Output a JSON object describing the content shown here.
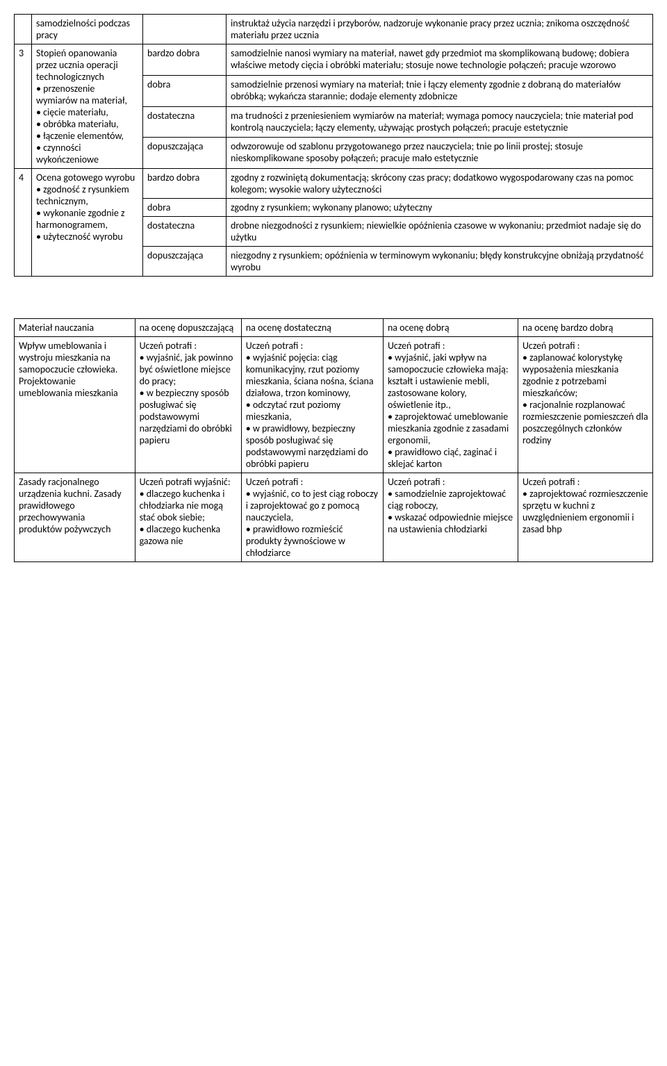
{
  "table1": {
    "r0": {
      "desc": "samodzielności podczas pracy",
      "text": "instruktaż użycia narzędzi i przyborów, nadzoruje wykonanie pracy przez ucznia; znikoma oszczędność materiału przez ucznia"
    },
    "r3": {
      "num": "3",
      "desc": "Stopień opanowania przez ucznia operacji technologicznych\n• przenoszenie wymiarów na materiał,\n• cięcie materiału,\n• obróbka materiału,\n• łączenie elementów,\n• czynności wykończeniowe",
      "g1": "bardzo dobra",
      "t1": "samodzielnie nanosi wymiary na materiał, nawet gdy przedmiot ma skomplikowaną budowę; dobiera właściwe metody cięcia i obróbki materiału; stosuje nowe technologie połączeń; pracuje wzorowo",
      "g2": "dobra",
      "t2": "samodzielnie przenosi wymiary na materiał; tnie i łączy elementy zgodnie z dobraną do materiałów obróbką; wykańcza starannie; dodaje elementy zdobnicze",
      "g3": "dostateczna",
      "t3": "ma trudności z przeniesieniem wymiarów na materiał; wymaga pomocy nauczyciela; tnie materiał pod kontrolą nauczyciela; łączy elementy, używając prostych połączeń; pracuje estetycznie",
      "g4": "dopuszczająca",
      "t4": "odwzorowuje od szablonu przygotowanego przez nauczyciela; tnie po linii prostej; stosuje nieskomplikowane sposoby połączeń; pracuje mało estetycznie"
    },
    "r4": {
      "num": "4",
      "desc": "Ocena gotowego wyrobu\n• zgodność z rysunkiem technicznym,\n• wykonanie zgodnie z harmonogramem,\n• użyteczność wyrobu",
      "g1": "bardzo dobra",
      "t1": "zgodny z rozwiniętą dokumentacją; skrócony czas pracy; dodatkowo wygospodarowany czas na pomoc kolegom; wysokie walory użyteczności",
      "g2": "dobra",
      "t2": "zgodny z rysunkiem; wykonany planowo; użyteczny",
      "g3": "dostateczna",
      "t3": "drobne niezgodności z rysunkiem; niewielkie opóźnienia czasowe w wykonaniu; przedmiot nadaje się do użytku",
      "g4": "dopuszczająca",
      "t4": "niezgodny z rysunkiem; opóźnienia w terminowym wykonaniu; błędy konstrukcyjne obniżają przydatność wyrobu"
    }
  },
  "table2": {
    "header": {
      "c1": "Materiał nauczania",
      "c2": "na ocenę dopuszczającą",
      "c3": "na ocenę dostateczną",
      "c4": "na ocenę dobrą",
      "c5": "na ocenę bardzo dobrą"
    },
    "r1": {
      "c1": "Wpływ umeblowania i wystroju mieszkania na samopoczucie człowieka. Projektowanie umeblowania mieszkania",
      "c2": "Uczeń potrafi :\n• wyjaśnić, jak powinno być oświetlone miejsce do pracy;\n• w bezpieczny sposób posługiwać się podstawowymi narzędziami do obróbki papieru",
      "c3": "Uczeń potrafi :\n• wyjaśnić pojęcia: ciąg komunikacyjny, rzut poziomy mieszkania, ściana nośna, ściana działowa, trzon kominowy,\n• odczytać rzut poziomy mieszkania,\n• w prawidłowy, bezpieczny sposób posługiwać się podstawowymi narzędziami do obróbki papieru",
      "c4": "Uczeń potrafi :\n• wyjaśnić, jaki wpływ na samopoczucie człowieka mają: kształt i ustawienie mebli, zastosowane kolory, oświetlenie itp.,\n• zaprojektować umeblowanie mieszkania zgodnie z zasadami ergonomii,\n• prawidłowo ciąć, zaginać i sklejać karton",
      "c5": "Uczeń potrafi :\n• zaplanować kolorystykę wyposażenia mieszkania zgodnie z potrzebami mieszkańców;\n• racjonalnie rozplanować rozmieszczenie pomieszczeń dla poszczególnych członków rodziny"
    },
    "r2": {
      "c1": "Zasady racjonalnego urządzenia kuchni. Zasady prawidłowego przechowywania produktów pożywczych",
      "c2": "Uczeń potrafi wyjaśnić:\n• dlaczego kuchenka i chłodziarka nie mogą stać obok siebie;\n• dlaczego kuchenka gazowa nie",
      "c3": "Uczeń potrafi :\n• wyjaśnić, co to jest ciąg roboczy i zaprojektować go z pomocą nauczyciela,\n• prawidłowo rozmieścić produkty żywnościowe w chłodziarce",
      "c4": "Uczeń potrafi :\n• samodzielnie zaprojektować ciąg roboczy,\n• wskazać odpowiednie miejsce na ustawienia chłodziarki",
      "c5": "Uczeń potrafi :\n• zaprojektować rozmieszczenie sprzętu w kuchni z uwzględnieniem ergonomii i zasad bhp"
    }
  }
}
